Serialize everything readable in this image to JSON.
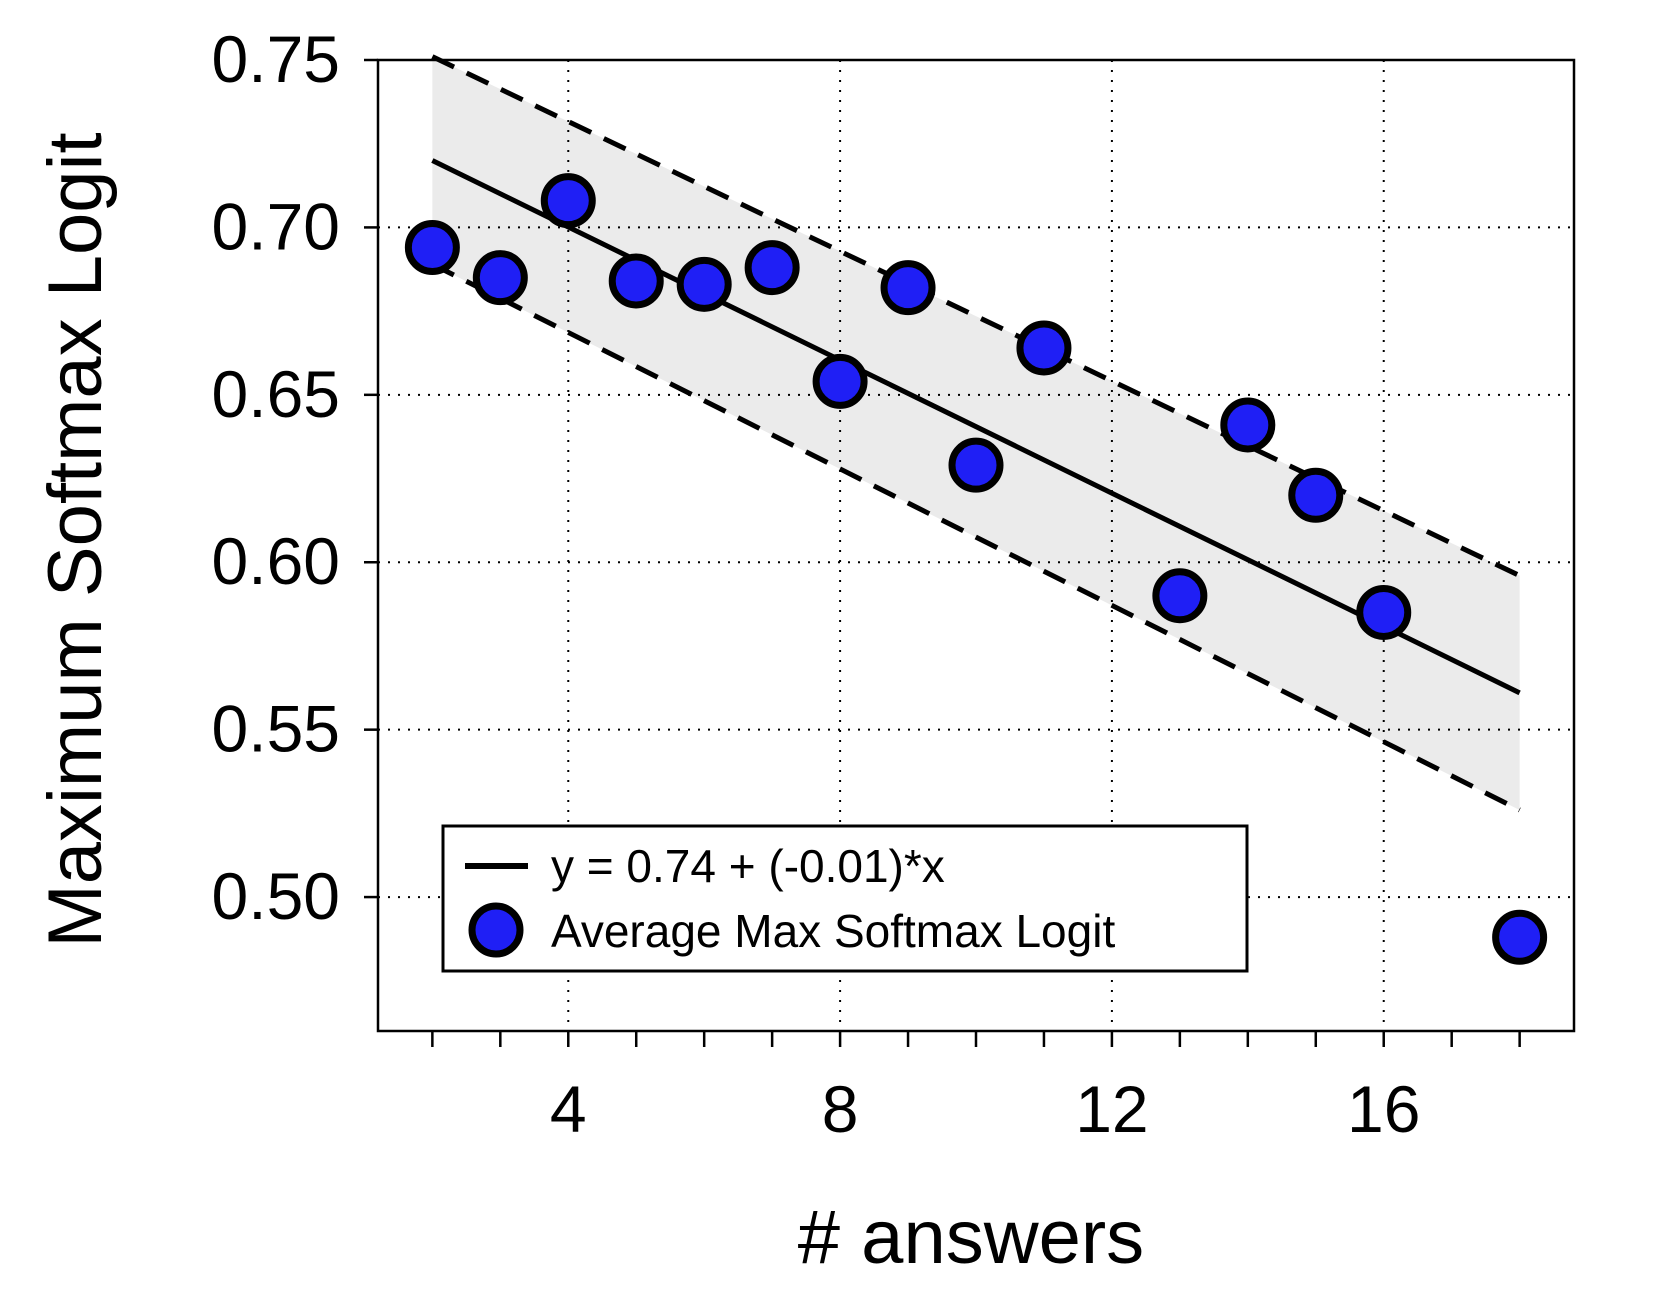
{
  "chart_data": {
    "type": "scatter",
    "title": "",
    "xlabel": "# answers",
    "ylabel": "Maximum Softmax Logit",
    "xlim": [
      1.2,
      18.8
    ],
    "ylim": [
      0.46,
      0.75
    ],
    "xticks": [
      4,
      8,
      12,
      16
    ],
    "xtick_labels": [
      "4",
      "8",
      "12",
      "16"
    ],
    "xminor_ticks": [
      2,
      3,
      5,
      6,
      7,
      9,
      10,
      11,
      13,
      14,
      15,
      17,
      18
    ],
    "yticks": [
      0.5,
      0.55,
      0.6,
      0.65,
      0.7,
      0.75
    ],
    "ytick_labels": [
      "0.50",
      "0.55",
      "0.60",
      "0.65",
      "0.70",
      "0.75"
    ],
    "grid": true,
    "legend_position": "bottom-left",
    "series": [
      {
        "name": "Average Max Softmax Logit",
        "kind": "scatter",
        "color": "#1f1ff5",
        "x": [
          2,
          3,
          4,
          5,
          6,
          7,
          8,
          9,
          10,
          11,
          13,
          14,
          15,
          16,
          18
        ],
        "y": [
          0.694,
          0.685,
          0.708,
          0.684,
          0.683,
          0.688,
          0.654,
          0.682,
          0.629,
          0.664,
          0.59,
          0.641,
          0.62,
          0.585,
          0.488
        ]
      },
      {
        "name": "y =  0.74 + (-0.01)*x",
        "kind": "line",
        "color": "#000000",
        "x": [
          2,
          18
        ],
        "y": [
          0.72,
          0.561
        ]
      }
    ],
    "confidence_band": {
      "color": "#ebebeb",
      "x": [
        2,
        18
      ],
      "upper": [
        0.751,
        0.596
      ],
      "lower": [
        0.689,
        0.526
      ]
    }
  }
}
